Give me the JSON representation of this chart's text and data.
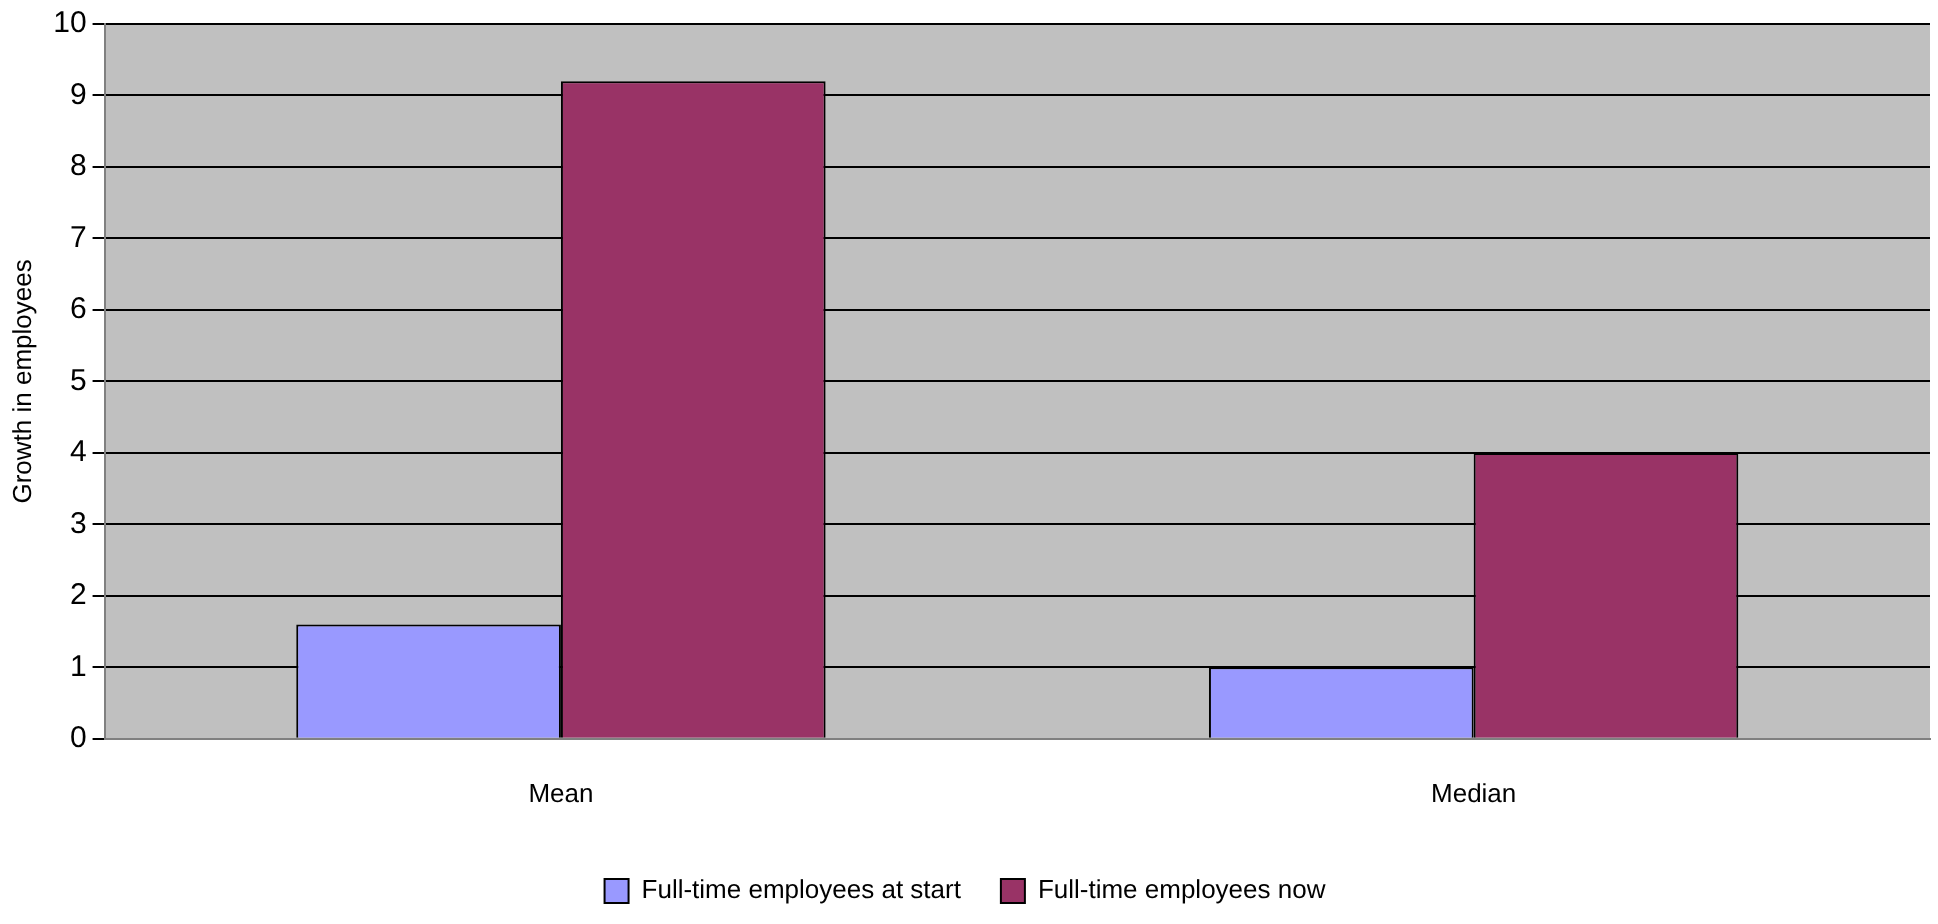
{
  "chart_data": {
    "type": "bar",
    "ylabel": "Growth in employees",
    "categories": [
      "Mean",
      "Median"
    ],
    "series": [
      {
        "name": "Full-time employees at start",
        "color": "#9999ff",
        "values": [
          1.6,
          1
        ]
      },
      {
        "name": "Full-time employees now",
        "color": "#993366",
        "values": [
          9.2,
          4
        ]
      }
    ],
    "ylim": [
      0,
      10
    ],
    "yticks": [
      0,
      1,
      2,
      3,
      4,
      5,
      6,
      7,
      8,
      9,
      10
    ],
    "grid": "y",
    "legend": "bottom"
  }
}
